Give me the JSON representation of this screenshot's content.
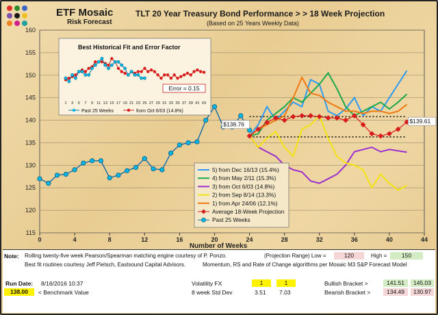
{
  "header": {
    "brand": "ETF Mosaic",
    "brand_sub": "Risk Forecast",
    "title": "TLT  20 Year Treasury Bond Performance  > > 18 Week Projection",
    "subtitle": "(Based on 25 Years Weekly Data)",
    "logo_colors": [
      "#e0302a",
      "#2e8b2e",
      "#3a66c8",
      "#7a4fb0",
      "#1a1a1a",
      "#f0c020",
      "#f08020",
      "#d02090",
      "#20a0a0"
    ]
  },
  "chart_data": {
    "type": "line",
    "xlabel": "Number of Weeks",
    "xlim": [
      0,
      44
    ],
    "ylim": [
      115,
      160
    ],
    "x_ticks": [
      "0",
      "4",
      "8",
      "12",
      "16",
      "20",
      "24",
      "28",
      "32",
      "36",
      "40",
      "44"
    ],
    "y_ticks": [
      "115",
      "120",
      "125",
      "130",
      "135",
      "140",
      "145",
      "150",
      "155",
      "160"
    ],
    "past": {
      "name": "Past 25 Weeks",
      "color": "#00b7e6",
      "x": [
        0,
        1,
        2,
        3,
        4,
        5,
        6,
        7,
        8,
        9,
        10,
        11,
        12,
        13,
        14,
        15,
        16,
        17,
        18,
        19,
        20,
        21,
        22,
        23,
        24
      ],
      "y": [
        127,
        126,
        127.8,
        128,
        129,
        130.5,
        131,
        131,
        127.2,
        127.8,
        128.8,
        129.5,
        131.5,
        129.2,
        129,
        132.7,
        134.5,
        135,
        135.2,
        140,
        143,
        138.5,
        138.5,
        141,
        137.8
      ]
    },
    "last_price_label": "$138.76",
    "last_price_x": 21,
    "last_price_y": 138.76,
    "series": [
      {
        "name": "5)  from Dec 16/13 (15.4%)",
        "color": "#2c9bf0",
        "y": [
          136.5,
          139,
          143,
          140,
          142,
          144,
          143,
          149,
          148,
          142,
          141,
          142.5,
          145,
          141,
          143,
          142,
          145,
          148,
          151
        ]
      },
      {
        "name": "4)  from May 2/11 (15.3%)",
        "color": "#1aa84a",
        "y": [
          136.5,
          137,
          140,
          141.5,
          143,
          145,
          144,
          146,
          148,
          150.5,
          147,
          143,
          141,
          142,
          143,
          144,
          142.5,
          144,
          145.8
        ]
      },
      {
        "name": "3)  from Oct 6/03 (14.8%)",
        "color": "#9a2ed0",
        "y": [
          136.5,
          134,
          133,
          132,
          130,
          129,
          128.5,
          126.5,
          126,
          127,
          128,
          130,
          133,
          133.5,
          134,
          133,
          133.5,
          133.2,
          132.9
        ]
      },
      {
        "name": "2)  from Sep 8/14 (13.3%)",
        "color": "#f2e311",
        "y": [
          136.5,
          134,
          136,
          137.5,
          134,
          132,
          138,
          139,
          141,
          136,
          132,
          130.5,
          130,
          129,
          125,
          128,
          126,
          124.5,
          125.5
        ]
      },
      {
        "name": "1)  from Apr 24/06 (12.1%)",
        "color": "#f07a10",
        "y": [
          136.5,
          138,
          139,
          140,
          141,
          145,
          149.5,
          146,
          145.5,
          144,
          143,
          142,
          142,
          141.5,
          142,
          142,
          141.5,
          142,
          143.5
        ]
      }
    ],
    "average": {
      "name": "Average 18-Week Projection",
      "color": "#d81b1b",
      "y": [
        136.5,
        138,
        139.5,
        140.5,
        140,
        140.8,
        141,
        141,
        140.8,
        140.5,
        140.5,
        140,
        141,
        139,
        137,
        136.5,
        137,
        138,
        139.6
      ]
    },
    "average_end_label": "$139.61",
    "projection_x_start": 24,
    "bracket_upper": 140.8,
    "bracket_lower": 136.3,
    "inset": {
      "title": "Best  Historical Fit and Error Factor",
      "error_label": "Error = 0.15",
      "x_ticks": [
        "1",
        "3",
        "5",
        "7",
        "9",
        "11",
        "13",
        "15",
        "17",
        "19",
        "21",
        "23",
        "25",
        "27",
        "29",
        "31",
        "33",
        "35",
        "37",
        "39",
        "41",
        "43"
      ],
      "legend_past": "Past 25 Weeks",
      "legend_fit": "from Oct 6/03 (14.8%)",
      "past_y": [
        150,
        149,
        151,
        150,
        152,
        152,
        151,
        151,
        153,
        154,
        155,
        156,
        154,
        153,
        154,
        155,
        155,
        154,
        153,
        151,
        152,
        151,
        151,
        150,
        150
      ],
      "fit_y": [
        149.5,
        150,
        150.5,
        151,
        152,
        152.5,
        152,
        153,
        153.5,
        155,
        155,
        155,
        154.5,
        154,
        156,
        155,
        153,
        152,
        151.5,
        151,
        152,
        151.5,
        152,
        152,
        153,
        152,
        152.5,
        152,
        151,
        150,
        151,
        151,
        150,
        151,
        150,
        150.5,
        151,
        151.5,
        151,
        152,
        152.5,
        152,
        151.8
      ]
    }
  },
  "footer": {
    "note_label": "Note:",
    "note_text": "Rolling twenty-five week Pearson/Spearman matching engine courtesy of P. Ponzo.",
    "note_text2": "Best fit routines courtesy Jeff Pietsch, Eastsound Capital Advisors.",
    "note_text3": "Momentum, RS and Rate of Change algorithms per Mosaic M3 S&P Forecast Model",
    "proj_range_label": "(Projection Range) Low =",
    "proj_low": "120",
    "high_label": "High =",
    "proj_high": "150",
    "run_date_label": "Run Date:",
    "run_date": "8/16/2016 10:37",
    "benchmark_value": "138.00",
    "benchmark_label": "< Benchmark Value",
    "vol_label": "Volatility FX",
    "vol_1": "1",
    "vol_2": "1",
    "std_label": "8 week Std Dev",
    "std_1": "3.51",
    "std_2": "7.03",
    "bull_label": "Bullish Bracket >",
    "bull_1": "141.51",
    "bull_2": "145.03",
    "bear_label": "Bearish Bracket >",
    "bear_1": "134.49",
    "bear_2": "130.97"
  }
}
